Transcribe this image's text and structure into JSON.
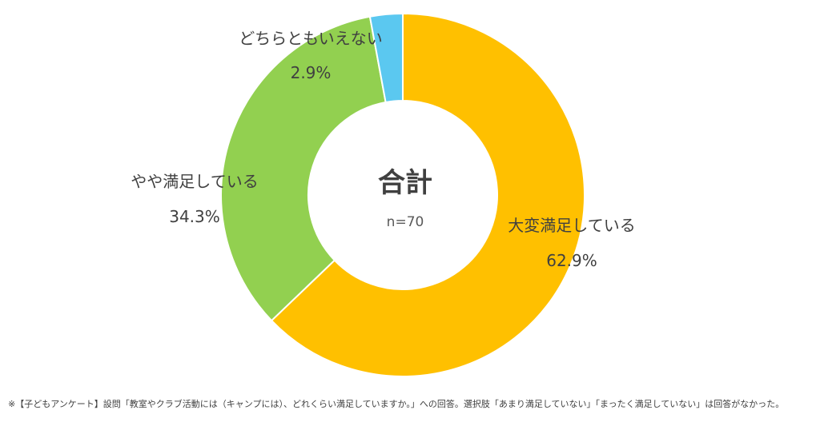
{
  "chart_data": {
    "type": "pie",
    "donut": true,
    "center_title": "合計",
    "center_subtitle": "n=70",
    "slices": [
      {
        "label": "大変満足している",
        "value": 62.9,
        "value_label": "62.9%",
        "color": "#FFC000"
      },
      {
        "label": "やや満足している",
        "value": 34.3,
        "value_label": "34.3%",
        "color": "#92D050"
      },
      {
        "label": "どちらともいえない",
        "value": 2.9,
        "value_label": "2.9%",
        "color": "#5BC8F0"
      }
    ]
  },
  "footnote": "※【子どもアンケート】設問「教室やクラブ活動には（キャンプには）、どれくらい満足していますか。」への回答。選択肢「あまり満足していない」「まったく満足していない」は回答がなかった。"
}
